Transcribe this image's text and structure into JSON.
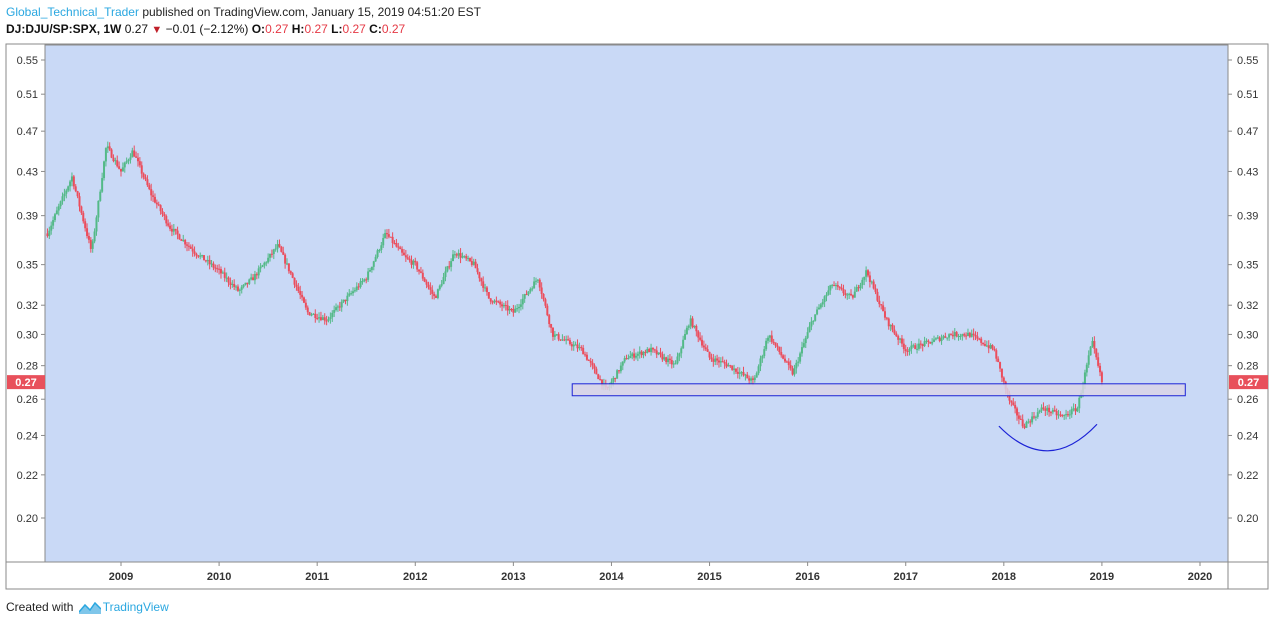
{
  "header": {
    "author": "Global_Technical_Trader",
    "published_text": "published on TradingView.com, January 15, 2019 04:51:20 EST",
    "symbol": "DJ:DJU/SP:SPX, 1W",
    "last": "0.27",
    "change": "−0.01 (−2.12%)",
    "o_label": "O:",
    "o_value": "0.27",
    "h_label": "H:",
    "h_value": "0.27",
    "l_label": "L:",
    "l_value": "0.27",
    "c_label": "C:",
    "c_value": "0.27"
  },
  "footer": {
    "created_with": "Created with",
    "brand": "TradingView"
  },
  "colors": {
    "plot_bg": "#c9d9f6",
    "up": "#53b987",
    "down": "#eb4d5c",
    "support_box_stroke": "#1b22d6",
    "support_box_fill": "#d9d4e6",
    "arc": "#1b22d6",
    "price_tag": "#e8505b"
  },
  "chart_data": {
    "type": "candlestick",
    "title": "DJ:DJU/SP:SPX, 1W",
    "y_scale": "log",
    "y_ticks": [
      0.55,
      0.51,
      0.47,
      0.43,
      0.39,
      0.35,
      0.32,
      0.3,
      0.28,
      0.26,
      0.24,
      0.22,
      0.2
    ],
    "y_tick_labels": [
      "0.55",
      "0.51",
      "0.47",
      "0.43",
      "0.39",
      "0.35",
      "0.32",
      "0.30",
      "0.28",
      "0.26",
      "0.24",
      "0.22",
      "0.20"
    ],
    "x_ticks": [
      2009,
      2010,
      2011,
      2012,
      2013,
      2014,
      2015,
      2016,
      2017,
      2018,
      2019,
      2020
    ],
    "x_tick_labels": [
      "2009",
      "2010",
      "2011",
      "2012",
      "2013",
      "2014",
      "2015",
      "2016",
      "2017",
      "2018",
      "2019",
      "2020"
    ],
    "last_price_label": "0.27",
    "last_price": 0.27,
    "x": [
      2008.25,
      2008.5,
      2008.7,
      2008.85,
      2009.0,
      2009.12,
      2009.3,
      2009.5,
      2009.75,
      2010.0,
      2010.2,
      2010.35,
      2010.6,
      2010.75,
      2010.9,
      2011.1,
      2011.3,
      2011.5,
      2011.7,
      2011.9,
      2012.0,
      2012.2,
      2012.4,
      2012.6,
      2012.75,
      2013.0,
      2013.25,
      2013.4,
      2013.7,
      2013.95,
      2014.15,
      2014.4,
      2014.65,
      2014.8,
      2015.0,
      2015.2,
      2015.45,
      2015.6,
      2015.85,
      2016.05,
      2016.25,
      2016.45,
      2016.6,
      2016.8,
      2017.0,
      2017.25,
      2017.45,
      2017.65,
      2017.9,
      2018.05,
      2018.2,
      2018.4,
      2018.6,
      2018.75,
      2018.9,
      2019.0
    ],
    "close": [
      0.375,
      0.425,
      0.36,
      0.455,
      0.43,
      0.45,
      0.41,
      0.38,
      0.36,
      0.345,
      0.33,
      0.34,
      0.365,
      0.34,
      0.315,
      0.31,
      0.325,
      0.34,
      0.375,
      0.355,
      0.35,
      0.325,
      0.36,
      0.35,
      0.325,
      0.315,
      0.34,
      0.3,
      0.29,
      0.265,
      0.285,
      0.29,
      0.28,
      0.31,
      0.285,
      0.28,
      0.27,
      0.3,
      0.275,
      0.31,
      0.335,
      0.325,
      0.345,
      0.31,
      0.29,
      0.295,
      0.3,
      0.3,
      0.29,
      0.26,
      0.245,
      0.255,
      0.25,
      0.255,
      0.295,
      0.27
    ],
    "annotations": {
      "support_zone": {
        "x_from": 2013.6,
        "x_to": 2019.85,
        "y_low": 0.262,
        "y_high": 0.269
      },
      "rounding_bottom": {
        "x_from": 2017.95,
        "x_to": 2018.95,
        "y_left": 0.245,
        "y_min": 0.232,
        "y_right": 0.246
      }
    }
  }
}
